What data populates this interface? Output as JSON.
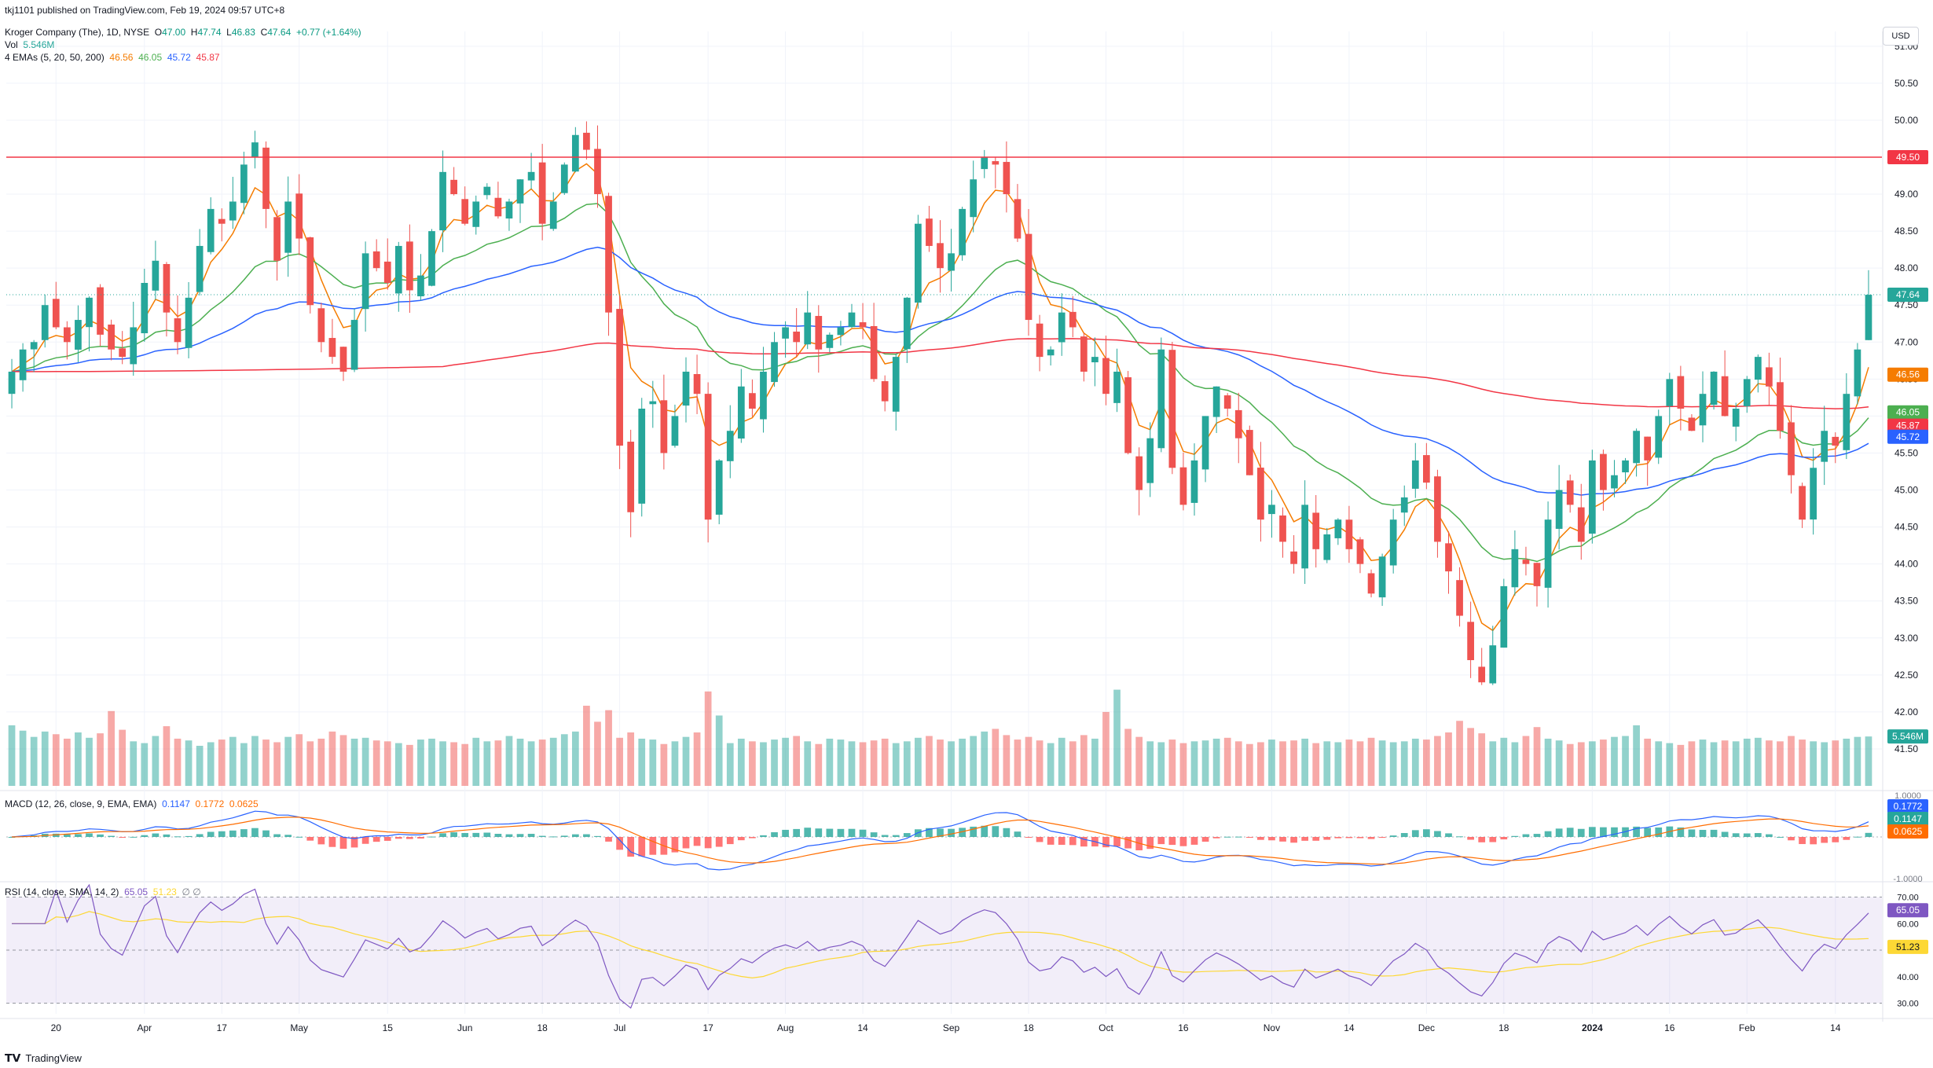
{
  "header": {
    "published": "tkj1101 published on TradingView.com, Feb 19, 2024 09:57 UTC+8",
    "symbol": "Kroger Company (The), 1D, NYSE",
    "o_label": "O",
    "o_value": "47.00",
    "h_label": "H",
    "h_value": "47.74",
    "l_label": "L",
    "l_value": "46.83",
    "c_label": "C",
    "c_value": "47.64",
    "change": "+0.77 (+1.64%)",
    "vol_label": "Vol",
    "vol_value": "5.546M",
    "ema_label": "4 EMAs (5, 20, 50, 200)",
    "ema_values": [
      "46.56",
      "46.05",
      "45.72",
      "45.87"
    ]
  },
  "currency": "USD",
  "footer": {
    "brand": "TradingView"
  },
  "macd": {
    "label": "MACD (12, 26, close, 9, EMA, EMA)",
    "values": [
      "0.1147",
      "0.1772",
      "0.0625"
    ]
  },
  "rsi": {
    "label": "RSI (14, close, SMA, 14, 2)",
    "values": [
      "65.05",
      "51.23"
    ],
    "extra": "∅ ∅"
  },
  "colors": {
    "up": "#26a69a",
    "down": "#ef5350",
    "ema5": "#f57c00",
    "ema20": "#4caf50",
    "ema50": "#2962ff",
    "ema200": "#f23645",
    "hline": "#f23645",
    "rsi": "#7e57c2",
    "rsi_ma": "#fdd835",
    "macd": "#2962ff",
    "signal": "#ff6d00"
  },
  "chart_data": [
    {
      "type": "candlestick",
      "title": "Kroger Company (The), 1D, NYSE",
      "ylim": [
        41.0,
        51.2
      ],
      "y_ticks": [
        "41.50",
        "42.00",
        "42.50",
        "43.00",
        "43.50",
        "44.00",
        "44.50",
        "45.00",
        "45.50",
        "46.00",
        "46.50",
        "47.00",
        "47.50",
        "48.00",
        "48.50",
        "49.00",
        "49.50",
        "50.00",
        "50.50",
        "51.00"
      ],
      "x_ticks": [
        "20",
        "Apr",
        "17",
        "May",
        "15",
        "Jun",
        "18",
        "Jul",
        "17",
        "Aug",
        "14",
        "Sep",
        "18",
        "Oct",
        "16",
        "Nov",
        "14",
        "Dec",
        "18",
        "2024",
        "16",
        "Feb",
        "14"
      ],
      "horizontal_line": {
        "value": 49.5,
        "label": "49.50"
      },
      "last_price": {
        "value": 47.64,
        "label": "47.64"
      },
      "price_labels": [
        {
          "label": "46.56",
          "value": 46.56,
          "series": "EMA 5"
        },
        {
          "label": "46.05",
          "value": 46.05,
          "series": "EMA 20"
        },
        {
          "label": "45.87",
          "value": 45.87,
          "series": "EMA 200"
        },
        {
          "label": "45.72",
          "value": 45.72,
          "series": "EMA 50"
        }
      ],
      "volume_label": "5.546M",
      "close": [
        46.6,
        46.9,
        47.0,
        47.5,
        47.2,
        47.0,
        47.3,
        47.6,
        47.1,
        46.9,
        46.8,
        47.2,
        47.8,
        48.1,
        47.4,
        47.0,
        47.6,
        48.3,
        48.8,
        48.6,
        48.9,
        49.4,
        49.7,
        48.8,
        48.1,
        48.9,
        48.4,
        47.5,
        47.0,
        46.8,
        46.6,
        47.3,
        48.2,
        48.0,
        47.8,
        48.3,
        47.7,
        47.9,
        48.5,
        49.3,
        49.0,
        48.6,
        48.9,
        49.1,
        48.7,
        48.9,
        49.2,
        49.3,
        48.6,
        48.9,
        49.4,
        49.8,
        49.6,
        49.0,
        47.4,
        45.6,
        44.7,
        46.1,
        46.2,
        45.5,
        46.0,
        46.6,
        46.3,
        44.6,
        45.4,
        45.8,
        46.4,
        46.1,
        46.6,
        47.0,
        47.2,
        47.0,
        47.4,
        46.9,
        47.1,
        47.2,
        47.4,
        47.2,
        46.5,
        46.2,
        46.8,
        47.6,
        48.6,
        48.3,
        48.0,
        48.2,
        48.8,
        49.2,
        49.5,
        49.4,
        49.0,
        48.4,
        47.3,
        46.8,
        46.9,
        47.4,
        47.2,
        46.6,
        46.8,
        46.3,
        46.6,
        45.5,
        45.0,
        45.7,
        46.9,
        45.3,
        44.8,
        45.4,
        46.0,
        46.4,
        46.1,
        45.7,
        45.2,
        44.6,
        44.8,
        44.3,
        44.0,
        44.8,
        44.2,
        44.4,
        44.6,
        44.2,
        44.0,
        43.6,
        44.1,
        44.6,
        44.9,
        45.4,
        45.1,
        44.3,
        43.9,
        43.3,
        42.7,
        42.4,
        42.9,
        43.7,
        44.2,
        44.0,
        43.7,
        44.6,
        45.0,
        44.8,
        44.3,
        45.4,
        45.0,
        45.2,
        45.4,
        45.8,
        45.4,
        46.0,
        46.5,
        46.1,
        45.8,
        46.3,
        46.6,
        46.0,
        46.1,
        46.5,
        46.8,
        46.4,
        45.8,
        45.2,
        44.6,
        45.3,
        45.8,
        45.6,
        46.3,
        46.9,
        47.64
      ],
      "volume_M": [
        6.8,
        6.2,
        5.5,
        6.1,
        5.8,
        5.3,
        6.0,
        5.4,
        5.9,
        8.4,
        6.3,
        5.0,
        4.8,
        5.6,
        6.7,
        5.3,
        5.1,
        4.5,
        4.9,
        5.2,
        5.5,
        4.8,
        5.6,
        5.2,
        4.9,
        5.5,
        5.8,
        5.0,
        5.3,
        6.1,
        5.7,
        5.3,
        5.4,
        5.1,
        5.0,
        4.8,
        4.6,
        5.2,
        5.3,
        5.0,
        4.9,
        4.7,
        5.4,
        5.0,
        5.1,
        5.6,
        5.3,
        5.0,
        5.2,
        5.4,
        5.8,
        6.1,
        9.0,
        7.2,
        8.5,
        5.4,
        6.0,
        5.3,
        5.2,
        4.7,
        5.0,
        5.5,
        6.0,
        10.6,
        7.9,
        4.8,
        5.3,
        5.0,
        4.9,
        5.2,
        5.4,
        5.6,
        5.0,
        4.7,
        5.3,
        5.2,
        5.0,
        4.9,
        5.1,
        5.3,
        4.8,
        5.0,
        5.4,
        5.6,
        5.2,
        5.0,
        5.3,
        5.6,
        6.1,
        6.4,
        5.7,
        5.2,
        5.5,
        5.1,
        4.8,
        5.4,
        5.0,
        5.7,
        5.3,
        8.3,
        10.8,
        6.4,
        5.5,
        5.0,
        4.9,
        5.2,
        4.8,
        5.0,
        5.1,
        5.3,
        5.4,
        5.0,
        4.7,
        4.9,
        5.2,
        5.0,
        5.1,
        5.3,
        4.8,
        5.0,
        4.9,
        5.2,
        5.0,
        5.4,
        5.1,
        4.9,
        5.0,
        5.3,
        5.2,
        5.6,
        6.0,
        7.3,
        6.5,
        5.9,
        5.0,
        5.4,
        4.9,
        5.6,
        6.6,
        5.3,
        5.1,
        4.7,
        4.9,
        5.0,
        5.2,
        5.5,
        5.6,
        6.8,
        5.3,
        5.0,
        4.8,
        4.6,
        5.0,
        5.2,
        4.9,
        5.1,
        5.0,
        5.3,
        5.4,
        5.1,
        5.0,
        5.6,
        5.2,
        5.0,
        4.9,
        5.1,
        5.3,
        5.5,
        5.546
      ]
    },
    {
      "type": "line",
      "title": "MACD (12, 26, close, 9, EMA, EMA)",
      "ylim": [
        -1.0,
        1.0
      ],
      "y_ticks": [
        "1.0000",
        "-1.0000"
      ],
      "series": [
        {
          "name": "MACD",
          "last": 0.1772
        },
        {
          "name": "Signal",
          "last": 0.1147
        },
        {
          "name": "Histogram",
          "last": 0.0625
        }
      ]
    },
    {
      "type": "line",
      "title": "RSI (14, close, SMA, 14, 2)",
      "ylim": [
        26,
        74
      ],
      "y_ticks": [
        "70.00",
        "60.00",
        "40.00",
        "30.00"
      ],
      "bands": [
        30,
        50,
        70
      ],
      "series": [
        {
          "name": "RSI",
          "last": 65.05
        },
        {
          "name": "RSI-based MA",
          "last": 51.23
        }
      ]
    }
  ]
}
